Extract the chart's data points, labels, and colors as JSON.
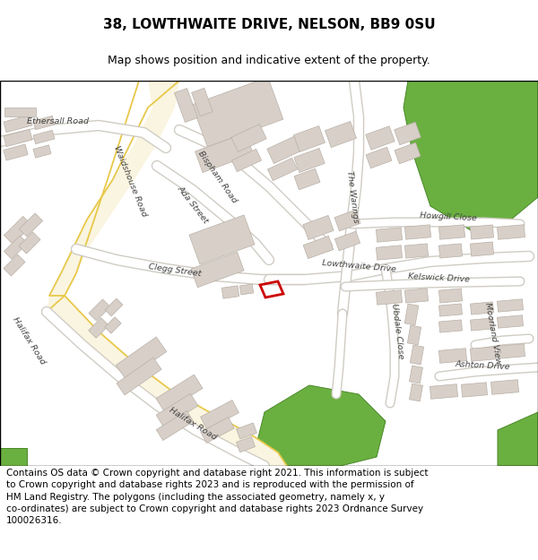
{
  "title": "38, LOWTHWAITE DRIVE, NELSON, BB9 0SU",
  "subtitle": "Map shows position and indicative extent of the property.",
  "footer": "Contains OS data © Crown copyright and database right 2021. This information is subject\nto Crown copyright and database rights 2023 and is reproduced with the permission of\nHM Land Registry. The polygons (including the associated geometry, namely x, y\nco-ordinates) are subject to Crown copyright and database rights 2023 Ordnance Survey\n100026316.",
  "bg_color": "#f5f4f0",
  "road_fill": "#faf5e0",
  "road_edge": "#e8c84a",
  "road_minor_fill": "#f0ece4",
  "road_minor_edge": "#d0ccc4",
  "building_fill": "#d8d0c8",
  "building_edge": "#b8b0a8",
  "green_fill": "#6ab040",
  "green_edge": "#4a8828",
  "highlight_color": "#cc0000",
  "text_color": "#404040",
  "title_fontsize": 11,
  "subtitle_fontsize": 9,
  "footer_fontsize": 7.5,
  "label_fontsize": 6.8
}
